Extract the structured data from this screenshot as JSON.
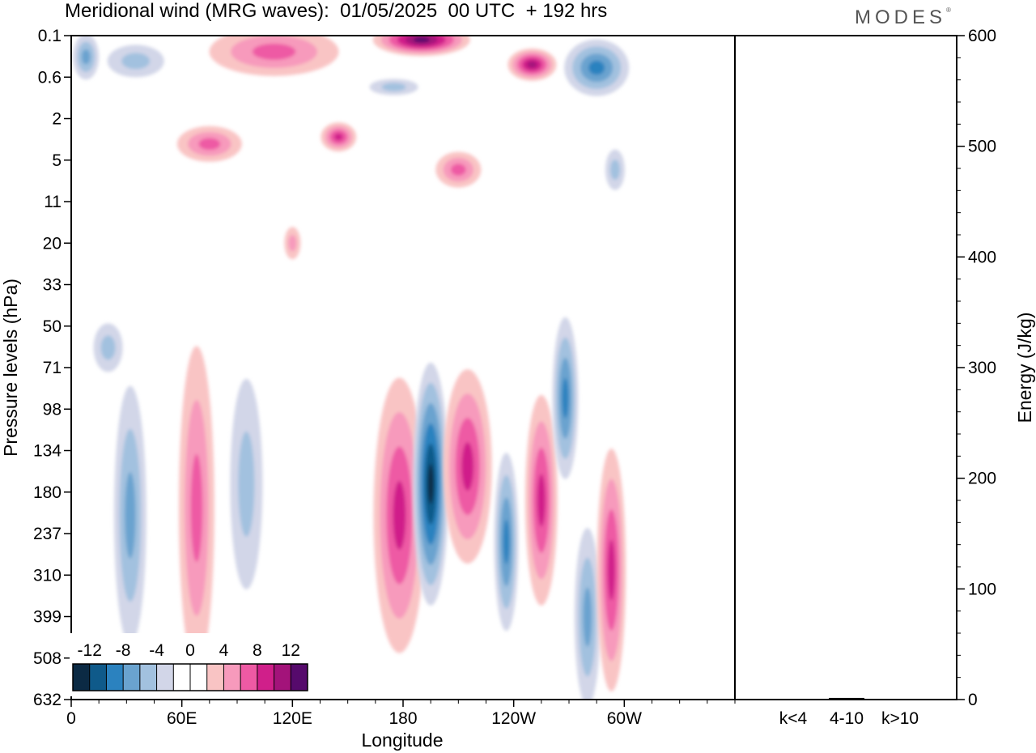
{
  "title": "Meridional wind (MRG waves):  01/05/2025  00 UTC  + 192 hrs",
  "brand": "MODES",
  "chart_data": [
    {
      "type": "heatmap",
      "title": "Meridional wind (MRG waves):  01/05/2025  00 UTC  + 192 hrs",
      "xlabel": "Longitude",
      "ylabel": "Pressure levels (hPa)",
      "x_ticks": [
        "0",
        "60E",
        "120E",
        "180",
        "120W",
        "60W"
      ],
      "y_ticks": [
        "0.1",
        "0.6",
        "2",
        "5",
        "11",
        "20",
        "33",
        "50",
        "71",
        "98",
        "134",
        "180",
        "237",
        "310",
        "399",
        "508",
        "632"
      ],
      "colorbar": {
        "labels": [
          "-12",
          "-8",
          "-4",
          "0",
          "4",
          "8",
          "12"
        ],
        "colors": [
          "#0b2a44",
          "#0f5a8a",
          "#2b82bf",
          "#6aa3cf",
          "#a2c1df",
          "#d2d6e8",
          "#ffffff",
          "#ffffff",
          "#f9c4c4",
          "#f79abc",
          "#ee5aa4",
          "#d01f8a",
          "#a3137a",
          "#560a6c"
        ]
      },
      "regions": [
        {
          "lon": 8,
          "p": 0.25,
          "value": -6,
          "rx": 16,
          "ry": 28
        },
        {
          "lon": 35,
          "p": 0.3,
          "value": -4,
          "rx": 35,
          "ry": 20
        },
        {
          "lon": 75,
          "p": 3.5,
          "value": 5,
          "rx": 40,
          "ry": 22
        },
        {
          "lon": 110,
          "p": 0.2,
          "value": 6,
          "rx": 80,
          "ry": 30
        },
        {
          "lon": 145,
          "p": 3,
          "value": 7,
          "rx": 22,
          "ry": 18
        },
        {
          "lon": 175,
          "p": 0.8,
          "value": -4,
          "rx": 30,
          "ry": 10
        },
        {
          "lon": 190,
          "p": 0.12,
          "value": 12,
          "rx": 60,
          "ry": 20
        },
        {
          "lon": 210,
          "p": 6,
          "value": 5,
          "rx": 28,
          "ry": 22
        },
        {
          "lon": 250,
          "p": 0.35,
          "value": 10,
          "rx": 30,
          "ry": 20
        },
        {
          "lon": 285,
          "p": 0.4,
          "value": -8,
          "rx": 40,
          "ry": 35
        },
        {
          "lon": 295,
          "p": 6,
          "value": -4,
          "rx": 12,
          "ry": 25
        },
        {
          "lon": 20,
          "p": 60,
          "value": -4,
          "rx": 18,
          "ry": 30
        },
        {
          "lon": 32,
          "p": 210,
          "value": -5,
          "rx": 20,
          "ry": 160
        },
        {
          "lon": 68,
          "p": 200,
          "value": 5,
          "rx": 22,
          "ry": 200
        },
        {
          "lon": 95,
          "p": 170,
          "value": -4,
          "rx": 20,
          "ry": 130
        },
        {
          "lon": 120,
          "p": 20,
          "value": 4,
          "rx": 10,
          "ry": 20
        },
        {
          "lon": 178,
          "p": 210,
          "value": 8,
          "rx": 32,
          "ry": 170
        },
        {
          "lon": 195,
          "p": 170,
          "value": -12,
          "rx": 22,
          "ry": 150
        },
        {
          "lon": 215,
          "p": 150,
          "value": 7,
          "rx": 30,
          "ry": 120
        },
        {
          "lon": 236,
          "p": 250,
          "value": -7,
          "rx": 15,
          "ry": 110
        },
        {
          "lon": 255,
          "p": 190,
          "value": 8,
          "rx": 20,
          "ry": 130
        },
        {
          "lon": 268,
          "p": 90,
          "value": -7,
          "rx": 16,
          "ry": 100
        },
        {
          "lon": 280,
          "p": 400,
          "value": -6,
          "rx": 16,
          "ry": 110
        },
        {
          "lon": 293,
          "p": 300,
          "value": 7,
          "rx": 18,
          "ry": 150
        }
      ]
    },
    {
      "type": "bar",
      "ylabel": "Energy (J/kg)",
      "ylim": [
        0,
        600
      ],
      "y_ticks": [
        "0",
        "100",
        "200",
        "300",
        "400",
        "500",
        "600"
      ],
      "categories": [
        "k<4",
        "4-10",
        "k>10"
      ],
      "values": [
        0.3,
        1.5,
        0.2
      ]
    }
  ]
}
